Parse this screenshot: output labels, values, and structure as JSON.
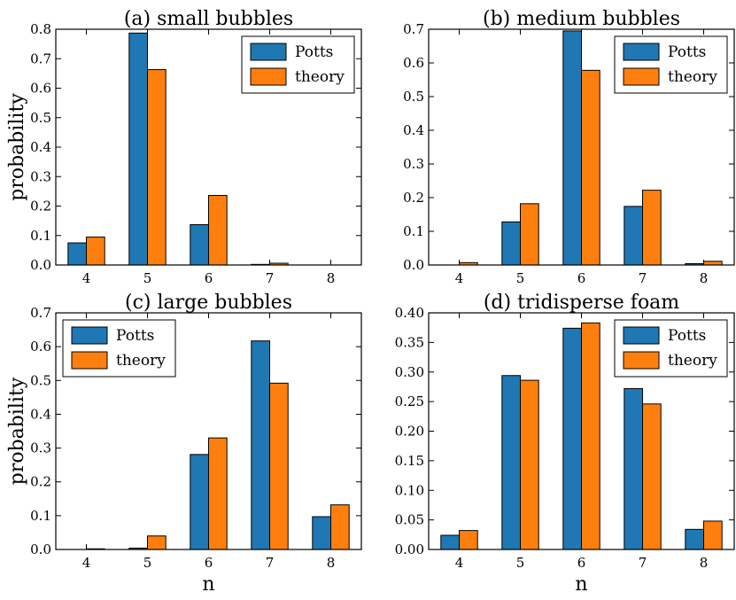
{
  "chart_data": [
    {
      "type": "bar",
      "title": "(a) small bubbles",
      "xlabel": "",
      "ylabel": "probability",
      "categories": [
        "4",
        "5",
        "6",
        "7",
        "8"
      ],
      "ylim": [
        0,
        0.8
      ],
      "yticks": [
        "0.0",
        "0.1",
        "0.2",
        "0.3",
        "0.4",
        "0.5",
        "0.6",
        "0.7",
        "0.8"
      ],
      "legend_position": "top-right",
      "series": [
        {
          "name": "Potts",
          "color": "#1f77b4",
          "values": [
            0.075,
            0.787,
            0.137,
            0.002,
            0.0
          ]
        },
        {
          "name": "theory",
          "color": "#ff7f0e",
          "values": [
            0.095,
            0.663,
            0.236,
            0.006,
            0.0
          ]
        }
      ]
    },
    {
      "type": "bar",
      "title": "(b) medium bubbles",
      "xlabel": "",
      "ylabel": "",
      "categories": [
        "4",
        "5",
        "6",
        "7",
        "8"
      ],
      "ylim": [
        0,
        0.7
      ],
      "yticks": [
        "0.0",
        "0.1",
        "0.2",
        "0.3",
        "0.4",
        "0.5",
        "0.6",
        "0.7"
      ],
      "legend_position": "top-right",
      "series": [
        {
          "name": "Potts",
          "color": "#1f77b4",
          "values": [
            0.0,
            0.128,
            0.695,
            0.174,
            0.004
          ]
        },
        {
          "name": "theory",
          "color": "#ff7f0e",
          "values": [
            0.007,
            0.182,
            0.578,
            0.222,
            0.011
          ]
        }
      ]
    },
    {
      "type": "bar",
      "title": "(c) large bubbles",
      "xlabel": "n",
      "ylabel": "probability",
      "categories": [
        "4",
        "5",
        "6",
        "7",
        "8"
      ],
      "ylim": [
        0,
        0.7
      ],
      "yticks": [
        "0.0",
        "0.1",
        "0.2",
        "0.3",
        "0.4",
        "0.5",
        "0.6",
        "0.7"
      ],
      "legend_position": "top-left",
      "series": [
        {
          "name": "Potts",
          "color": "#1f77b4",
          "values": [
            0.0,
            0.004,
            0.281,
            0.617,
            0.097
          ]
        },
        {
          "name": "theory",
          "color": "#ff7f0e",
          "values": [
            0.002,
            0.04,
            0.33,
            0.492,
            0.132
          ]
        }
      ]
    },
    {
      "type": "bar",
      "title": "(d) tridisperse foam",
      "xlabel": "n",
      "ylabel": "",
      "categories": [
        "4",
        "5",
        "6",
        "7",
        "8"
      ],
      "ylim": [
        0,
        0.4
      ],
      "yticks": [
        "0.00",
        "0.05",
        "0.10",
        "0.15",
        "0.20",
        "0.25",
        "0.30",
        "0.35",
        "0.40"
      ],
      "legend_position": "top-right",
      "series": [
        {
          "name": "Potts",
          "color": "#1f77b4",
          "values": [
            0.024,
            0.294,
            0.374,
            0.272,
            0.034
          ]
        },
        {
          "name": "theory",
          "color": "#ff7f0e",
          "values": [
            0.032,
            0.286,
            0.383,
            0.246,
            0.048
          ]
        }
      ]
    }
  ]
}
